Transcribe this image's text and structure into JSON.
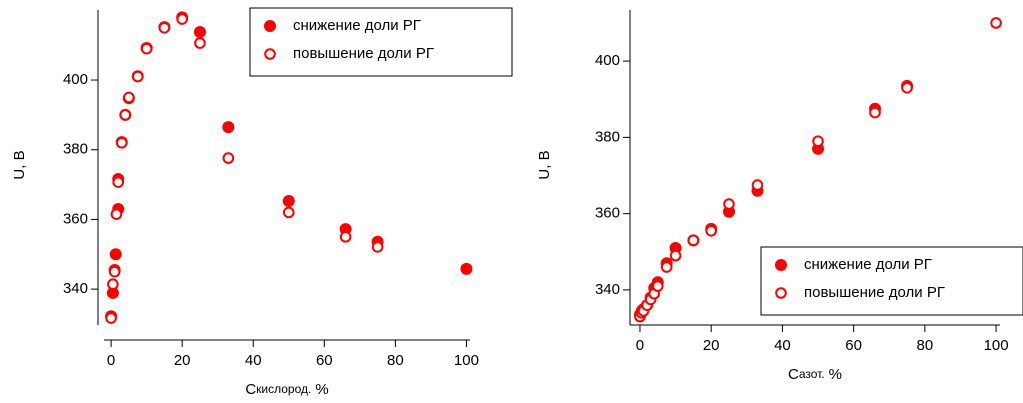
{
  "chart_data": [
    {
      "type": "scatter",
      "x_label": {
        "symbol": "C",
        "subscript": "кислород.",
        "unit": "%"
      },
      "y_label": "U, В",
      "xlim": [
        -2,
        101
      ],
      "ylim": [
        329.7,
        420.1
      ],
      "xticks": [
        0,
        20,
        40,
        60,
        80,
        100
      ],
      "yticks": [
        340,
        360,
        380,
        400
      ],
      "legend": "upper right",
      "series": [
        {
          "name": "снижение доли РГ",
          "color": "#ff0000",
          "filled": true,
          "x": [
            0,
            0.5,
            1,
            1.3,
            2,
            2,
            3,
            4,
            5,
            7.5,
            10,
            15,
            20,
            25,
            33,
            50,
            66,
            75,
            100
          ],
          "values": [
            332.2,
            338.9,
            345.5,
            350,
            363,
            371.6,
            382.2,
            390,
            394.8,
            401.1,
            409.2,
            415.2,
            418,
            413.8,
            386.5,
            365.3,
            357.2,
            353.6,
            345.8
          ]
        },
        {
          "name": "повышение доли РГ",
          "color": "#ff0000",
          "filled": false,
          "x": [
            0,
            0.5,
            1,
            1.5,
            2,
            3,
            4,
            5,
            7.5,
            10,
            15,
            20,
            25,
            33,
            50,
            66,
            75
          ],
          "values": [
            331.7,
            341.4,
            345,
            361.5,
            370.7,
            382,
            390,
            395,
            401,
            409,
            415,
            417.5,
            410.6,
            377.6,
            362,
            355,
            352.1
          ]
        }
      ]
    },
    {
      "type": "scatter",
      "x_label": {
        "symbol": "C",
        "subscript": "азот.",
        "unit": "%"
      },
      "y_label": "U, В",
      "xlim": [
        -2.8,
        101.1
      ],
      "ylim": [
        330.8,
        413.4
      ],
      "xticks": [
        0,
        20,
        40,
        60,
        80,
        100
      ],
      "yticks": [
        340,
        360,
        380,
        400
      ],
      "legend": "lower right",
      "series": [
        {
          "name": "снижение доли РГ",
          "color": "#ff0000",
          "filled": true,
          "x": [
            0,
            0.5,
            1,
            2,
            3,
            4,
            5,
            7.5,
            10,
            15,
            20,
            25,
            33,
            50,
            66,
            75
          ],
          "values": [
            333.5,
            334.5,
            335,
            336,
            338,
            340.5,
            342,
            347,
            351,
            353,
            356,
            360.5,
            366,
            377,
            387.5,
            393.5
          ]
        },
        {
          "name": "повышение доли РГ",
          "color": "#ff0000",
          "filled": false,
          "x": [
            0,
            0.5,
            1,
            2,
            3,
            4,
            5,
            7.5,
            10,
            15,
            20,
            25,
            33,
            50,
            66,
            75,
            100
          ],
          "values": [
            333,
            334,
            334.5,
            336,
            337.5,
            339,
            341,
            346,
            349,
            353,
            355.5,
            362.5,
            367.5,
            379,
            386.5,
            393,
            410
          ]
        }
      ]
    }
  ]
}
